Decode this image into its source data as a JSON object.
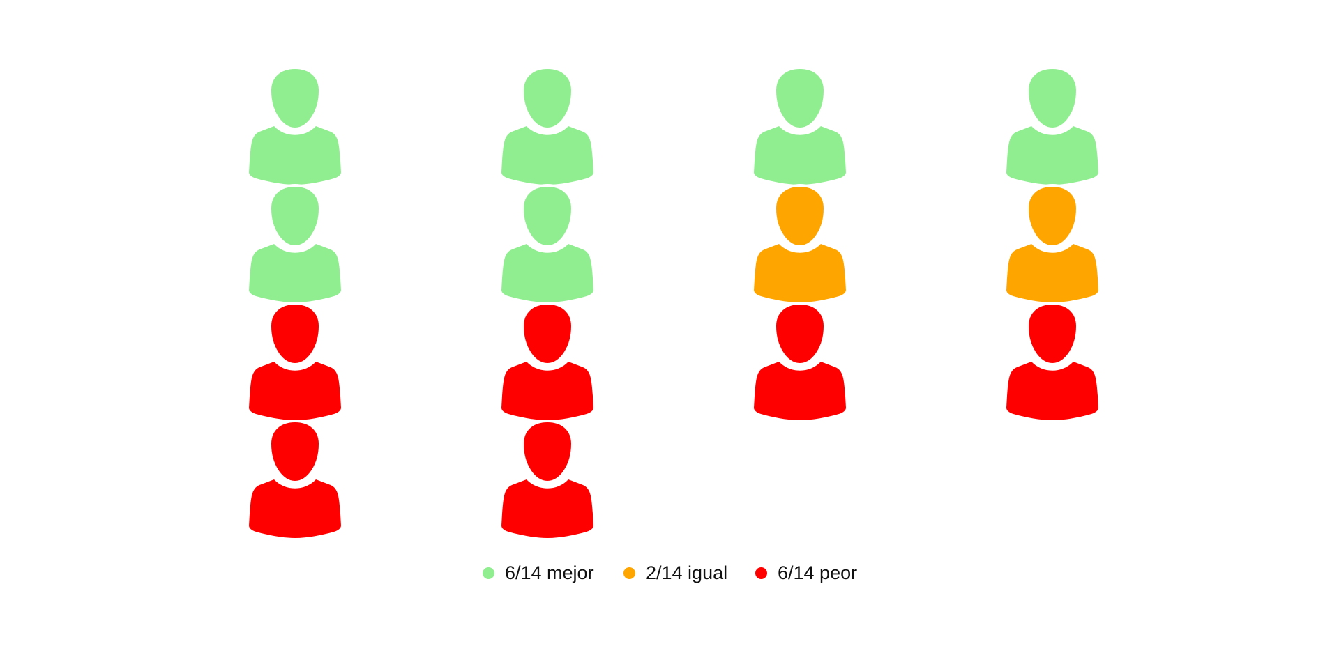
{
  "chart_data": {
    "type": "pictogram",
    "icon": "person-icon",
    "total": 14,
    "categories": [
      {
        "key": "mejor",
        "label": "6/14 mejor",
        "count": 6,
        "color": "#90ee90"
      },
      {
        "key": "igual",
        "label": "2/14 igual",
        "count": 2,
        "color": "#ffa500"
      },
      {
        "key": "peor",
        "label": "6/14 peor",
        "count": 6,
        "color": "#ff0000"
      }
    ],
    "columns": [
      [
        "mejor",
        "mejor",
        "peor",
        "peor"
      ],
      [
        "mejor",
        "mejor",
        "peor",
        "peor"
      ],
      [
        "mejor",
        "igual",
        "peor"
      ],
      [
        "mejor",
        "igual",
        "peor"
      ]
    ],
    "legend_position": "bottom-center"
  }
}
